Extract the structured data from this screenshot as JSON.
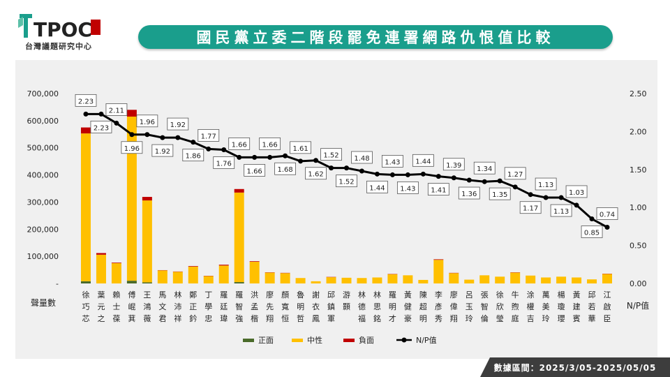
{
  "logo": {
    "brand": "TPOC",
    "org": "台灣議題研究中心"
  },
  "title": "國民黨立委二階段罷免連署網路仇恨值比較",
  "footer": "數據區間：2025/3/05-2025/05/05",
  "colors": {
    "positive": "#4a6b2a",
    "neutral": "#ffc000",
    "negative": "#c00000",
    "line": "#000000",
    "banner": "#1a9e8c"
  },
  "chart_data": {
    "type": "bar",
    "stacked": true,
    "categories": [
      "徐巧芯",
      "葉元之",
      "賴士葆",
      "傅崐萁",
      "王鴻薇",
      "馬文君",
      "林沛祥",
      "鄭正鈐",
      "丁學忠",
      "羅廷瑋",
      "羅智強",
      "洪孟楷",
      "廖先翔",
      "顏寬恒",
      "魯明哲",
      "謝衣鳳",
      "邱鎮軍",
      "游顥",
      "林德福",
      "林思銘",
      "羅明才",
      "黃健豪",
      "陳超明",
      "李彥秀",
      "廖偉翔",
      "呂玉玲",
      "張智倫",
      "徐欣瑩",
      "牛煦庭",
      "涂權吉",
      "萬美玲",
      "楊瓊瓔",
      "黃建賓",
      "邱若華",
      "江啟臣"
    ],
    "series": [
      {
        "name": "正面",
        "values": [
          8000,
          0,
          0,
          10000,
          4000,
          0,
          0,
          0,
          0,
          0,
          5000,
          0,
          0,
          0,
          0,
          0,
          0,
          0,
          0,
          0,
          0,
          0,
          0,
          0,
          0,
          0,
          0,
          0,
          0,
          0,
          0,
          0,
          0,
          0,
          0
        ]
      },
      {
        "name": "中性",
        "values": [
          545000,
          106000,
          75000,
          605000,
          302000,
          48000,
          43000,
          62000,
          27000,
          66000,
          330000,
          80000,
          40000,
          38000,
          20000,
          8000,
          23000,
          21000,
          20000,
          22000,
          34000,
          30000,
          13000,
          87000,
          38000,
          14000,
          30000,
          25000,
          40000,
          29000,
          22000,
          25000,
          22000,
          15000,
          35000
        ]
      },
      {
        "name": "負面",
        "values": [
          22000,
          6000,
          2000,
          25000,
          13000,
          1000,
          1000,
          2000,
          1000,
          3000,
          13000,
          2000,
          1000,
          1000,
          0,
          0,
          1000,
          0,
          0,
          0,
          1000,
          0,
          0,
          2000,
          1000,
          0,
          0,
          0,
          1000,
          0,
          0,
          0,
          0,
          0,
          1000
        ]
      }
    ],
    "line": {
      "name": "N/P值",
      "values": [
        2.23,
        2.23,
        2.11,
        1.96,
        1.96,
        1.92,
        1.92,
        1.86,
        1.77,
        1.76,
        1.66,
        1.66,
        1.66,
        1.68,
        1.61,
        1.62,
        1.52,
        1.52,
        1.48,
        1.44,
        1.43,
        1.43,
        1.44,
        1.41,
        1.39,
        1.36,
        1.34,
        1.35,
        1.27,
        1.17,
        1.13,
        1.13,
        1.03,
        0.85,
        0.74
      ]
    },
    "y_left": {
      "min": 0,
      "max": 700000,
      "ticks": [
        "-",
        "100,000",
        "200,000",
        "300,000",
        "400,000",
        "500,000",
        "600,000",
        "700,000"
      ],
      "label": "聲量數"
    },
    "y_right": {
      "min": 0,
      "max": 2.5,
      "ticks": [
        "0.00",
        "0.50",
        "1.00",
        "1.50",
        "2.00",
        "2.50"
      ],
      "label": "N/P值"
    },
    "legend": [
      "正面",
      "中性",
      "負面",
      "N/P值"
    ],
    "legend_position": "bottom",
    "grid": false
  }
}
